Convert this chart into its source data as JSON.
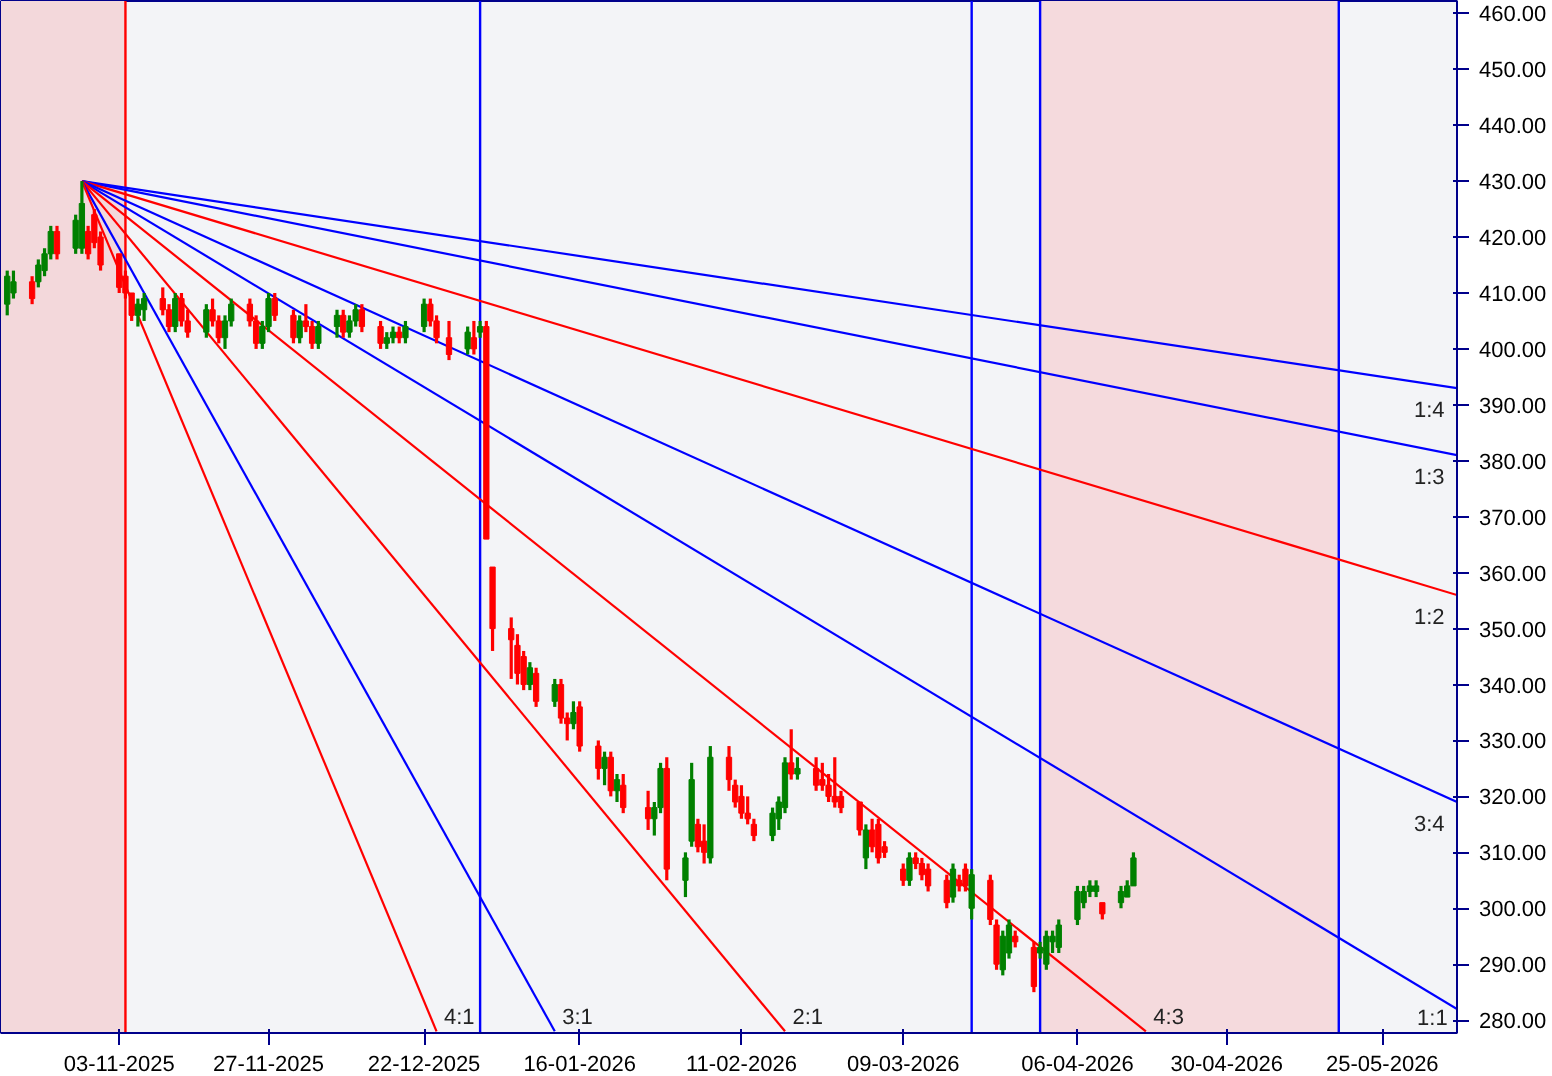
{
  "chart_data": {
    "type": "candlestick",
    "x": [
      "2025-10-16",
      "2025-10-17",
      "2025-10-20",
      "2025-10-21",
      "2025-10-22",
      "2025-10-23",
      "2025-10-24",
      "2025-10-27",
      "2025-10-28",
      "2025-10-29",
      "2025-10-30",
      "2025-10-31",
      "2025-11-03",
      "2025-11-04",
      "2025-11-05",
      "2025-11-06",
      "2025-11-07",
      "2025-11-10",
      "2025-11-11",
      "2025-11-12",
      "2025-11-13",
      "2025-11-14",
      "2025-11-17",
      "2025-11-18",
      "2025-11-19",
      "2025-11-20",
      "2025-11-21",
      "2025-11-24",
      "2025-11-25",
      "2025-11-26",
      "2025-11-27",
      "2025-11-28",
      "2025-12-01",
      "2025-12-02",
      "2025-12-03",
      "2025-12-04",
      "2025-12-05",
      "2025-12-08",
      "2025-12-09",
      "2025-12-10",
      "2025-12-11",
      "2025-12-12",
      "2025-12-15",
      "2025-12-16",
      "2025-12-17",
      "2025-12-18",
      "2025-12-19",
      "2025-12-22",
      "2025-12-23",
      "2025-12-24",
      "2025-12-26",
      "2025-12-29",
      "2025-12-30",
      "2025-12-31",
      "2026-01-01",
      "2026-01-02",
      "2026-01-05",
      "2026-01-06",
      "2026-01-07",
      "2026-01-08",
      "2026-01-09",
      "2026-01-12",
      "2026-01-13",
      "2026-01-14",
      "2026-01-15",
      "2026-01-16",
      "2026-01-19",
      "2026-01-20",
      "2026-01-21",
      "2026-01-22",
      "2026-01-23",
      "2026-01-27",
      "2026-01-28",
      "2026-01-29",
      "2026-01-30",
      "2026-02-02",
      "2026-02-03",
      "2026-02-04",
      "2026-02-05",
      "2026-02-06",
      "2026-02-09",
      "2026-02-10",
      "2026-02-11",
      "2026-02-12",
      "2026-02-13",
      "2026-02-16",
      "2026-02-17",
      "2026-02-18",
      "2026-02-19",
      "2026-02-20",
      "2026-02-23",
      "2026-02-24",
      "2026-02-25",
      "2026-02-26",
      "2026-02-27",
      "2026-03-02",
      "2026-03-03",
      "2026-03-04",
      "2026-03-05",
      "2026-03-06",
      "2026-03-09",
      "2026-03-10",
      "2026-03-11",
      "2026-03-12",
      "2026-03-13",
      "2026-03-16",
      "2026-03-17",
      "2026-03-18",
      "2026-03-19",
      "2026-03-20",
      "2026-03-23",
      "2026-03-24",
      "2026-03-25",
      "2026-03-26",
      "2026-03-27",
      "2026-03-30",
      "2026-03-31",
      "2026-04-01",
      "2026-04-02",
      "2026-04-03",
      "2026-04-06",
      "2026-04-07",
      "2026-04-08",
      "2026-04-09",
      "2026-04-10",
      "2026-04-13",
      "2026-04-14",
      "2026-04-15"
    ],
    "ohlc": [
      [
        408,
        414,
        406,
        413
      ],
      [
        410,
        414,
        409,
        412
      ],
      [
        412,
        413,
        408,
        409
      ],
      [
        412,
        416,
        411,
        415
      ],
      [
        414,
        418,
        413,
        417
      ],
      [
        417,
        422,
        416,
        421
      ],
      [
        421,
        422,
        416,
        417
      ],
      [
        418,
        424,
        417,
        423
      ],
      [
        418,
        430,
        417,
        426
      ],
      [
        421,
        422,
        416,
        417
      ],
      [
        424,
        425,
        418,
        419
      ],
      [
        420,
        421,
        414,
        415
      ],
      [
        417,
        417,
        410,
        411
      ],
      [
        413,
        414,
        409,
        410
      ],
      [
        410,
        410,
        405,
        406
      ],
      [
        406,
        409,
        404,
        408
      ],
      [
        407,
        410,
        405,
        409
      ],
      [
        409,
        411,
        406,
        407
      ],
      [
        407,
        408,
        403,
        404
      ],
      [
        404,
        410,
        403,
        409
      ],
      [
        409,
        410,
        404,
        405
      ],
      [
        405,
        407,
        402,
        403
      ],
      [
        403,
        408,
        402,
        407
      ],
      [
        407,
        409,
        404,
        405
      ],
      [
        405,
        406,
        401,
        402
      ],
      [
        402,
        406,
        400,
        405
      ],
      [
        405,
        409,
        404,
        408
      ],
      [
        408,
        409,
        404,
        405
      ],
      [
        405,
        406,
        400,
        401
      ],
      [
        401,
        405,
        400,
        404
      ],
      [
        404,
        410,
        403,
        409
      ],
      [
        409,
        410,
        405,
        406
      ],
      [
        406,
        407,
        401,
        402
      ],
      [
        402,
        406,
        401,
        405
      ],
      [
        405,
        408,
        403,
        404
      ],
      [
        404,
        405,
        400,
        401
      ],
      [
        401,
        405,
        400,
        404
      ],
      [
        404,
        407,
        402,
        406
      ],
      [
        406,
        407,
        402,
        403
      ],
      [
        403,
        406,
        402,
        405
      ],
      [
        405,
        408,
        404,
        407
      ],
      [
        407,
        408,
        403,
        404
      ],
      [
        404,
        405,
        400,
        401
      ],
      [
        401,
        403,
        400,
        402
      ],
      [
        402,
        404,
        401,
        403
      ],
      [
        403,
        404,
        401,
        402
      ],
      [
        402,
        405,
        401,
        404
      ],
      [
        404,
        409,
        403,
        408
      ],
      [
        408,
        409,
        404,
        405
      ],
      [
        405,
        406,
        401,
        402
      ],
      [
        402,
        405,
        398,
        399
      ],
      [
        400,
        404,
        399,
        403
      ],
      [
        402,
        405,
        399,
        400
      ],
      [
        403,
        405,
        402,
        404
      ],
      [
        404,
        405,
        366,
        366
      ],
      [
        361,
        361,
        346,
        350
      ],
      [
        350,
        352,
        341,
        348
      ],
      [
        347,
        349,
        340,
        342
      ],
      [
        345,
        346,
        339,
        340
      ],
      [
        340,
        344,
        339,
        343
      ],
      [
        342,
        343,
        336,
        337
      ],
      [
        337,
        341,
        336,
        340
      ],
      [
        340,
        341,
        333,
        334
      ],
      [
        334,
        335,
        330,
        333
      ],
      [
        333,
        337,
        332,
        335
      ],
      [
        336,
        337,
        328,
        329
      ],
      [
        329,
        330,
        323,
        325
      ],
      [
        325,
        328,
        322,
        327
      ],
      [
        327,
        328,
        320,
        321
      ],
      [
        321,
        324,
        319,
        323
      ],
      [
        322,
        324,
        317,
        318
      ],
      [
        318,
        321,
        314,
        316
      ],
      [
        316,
        319,
        313,
        318
      ],
      [
        318,
        326,
        317,
        325
      ],
      [
        325,
        327,
        305,
        307
      ],
      [
        305,
        310,
        302,
        309
      ],
      [
        312,
        326,
        311,
        323
      ],
      [
        315,
        316,
        310,
        311
      ],
      [
        312,
        315,
        308,
        310
      ],
      [
        309,
        329,
        308,
        327
      ],
      [
        327,
        329,
        321,
        323
      ],
      [
        322,
        323,
        318,
        319
      ],
      [
        320,
        322,
        316,
        317
      ],
      [
        317,
        320,
        315,
        316
      ],
      [
        315,
        316,
        312,
        313
      ],
      [
        313,
        318,
        312,
        317
      ],
      [
        316,
        320,
        314,
        319
      ],
      [
        318,
        327,
        317,
        326
      ],
      [
        326,
        332,
        323,
        324
      ],
      [
        324,
        327,
        323,
        325
      ],
      [
        325,
        327,
        321,
        322
      ],
      [
        323,
        326,
        321,
        322
      ],
      [
        322,
        324,
        319,
        320
      ],
      [
        320,
        327,
        318,
        319
      ],
      [
        320,
        321,
        317,
        318
      ],
      [
        319,
        319,
        313,
        314
      ],
      [
        309,
        315,
        307,
        314
      ],
      [
        314,
        316,
        310,
        311
      ],
      [
        315,
        316,
        308,
        309
      ],
      [
        311,
        312,
        309,
        310
      ],
      [
        307,
        308,
        304,
        305
      ],
      [
        305,
        310,
        304,
        309
      ],
      [
        309,
        310,
        307,
        308
      ],
      [
        308,
        309,
        305,
        306
      ],
      [
        307,
        308,
        303,
        304
      ],
      [
        305,
        306,
        300,
        301
      ],
      [
        302,
        308,
        301,
        307
      ],
      [
        305,
        306,
        303,
        304
      ],
      [
        307,
        308,
        303,
        304
      ],
      [
        300,
        307,
        298,
        306
      ],
      [
        305,
        306,
        297,
        298
      ],
      [
        297,
        298,
        289,
        290
      ],
      [
        289,
        296,
        288,
        295
      ],
      [
        292,
        298,
        291,
        297
      ],
      [
        295,
        296,
        293,
        294
      ],
      [
        293,
        294,
        285,
        286
      ],
      [
        292,
        294,
        291,
        293
      ],
      [
        290,
        296,
        289,
        295
      ],
      [
        294,
        296,
        292,
        295
      ],
      [
        293,
        298,
        292,
        297
      ],
      [
        298,
        304,
        297,
        303
      ],
      [
        301,
        304,
        300,
        303
      ],
      [
        303,
        305,
        302,
        304
      ],
      [
        303,
        305,
        302,
        304
      ],
      [
        301,
        301,
        298,
        299
      ],
      [
        301,
        304,
        300,
        303
      ],
      [
        302,
        305,
        302,
        304
      ],
      [
        304,
        310,
        304,
        309
      ]
    ],
    "colors": [
      "#008000",
      "#008000",
      "#ff0000",
      "#008000",
      "#008000",
      "#008000",
      "#ff0000",
      "#008000",
      "#008000",
      "#ff0000",
      "#ff0000",
      "#ff0000",
      "#ff0000",
      "#ff0000",
      "#ff0000",
      "#008000",
      "#008000",
      "#ff0000",
      "#ff0000",
      "#008000",
      "#ff0000",
      "#ff0000",
      "#008000",
      "#ff0000",
      "#ff0000",
      "#008000",
      "#008000",
      "#ff0000",
      "#ff0000",
      "#008000",
      "#008000",
      "#ff0000",
      "#ff0000",
      "#008000",
      "#ff0000",
      "#ff0000",
      "#008000",
      "#008000",
      "#ff0000",
      "#008000",
      "#008000",
      "#ff0000",
      "#ff0000",
      "#008000",
      "#008000",
      "#ff0000",
      "#008000",
      "#008000",
      "#ff0000",
      "#ff0000",
      "#ff0000",
      "#008000",
      "#ff0000",
      "#008000",
      "#ff0000",
      "#ff0000",
      "#ff0000",
      "#ff0000",
      "#ff0000",
      "#008000",
      "#ff0000",
      "#008000",
      "#ff0000",
      "#ff0000",
      "#008000",
      "#ff0000",
      "#ff0000",
      "#008000",
      "#ff0000",
      "#008000",
      "#ff0000",
      "#ff0000",
      "#008000",
      "#008000",
      "#ff0000",
      "#008000",
      "#008000",
      "#ff0000",
      "#ff0000",
      "#008000",
      "#ff0000",
      "#ff0000",
      "#ff0000",
      "#ff0000",
      "#ff0000",
      "#008000",
      "#008000",
      "#008000",
      "#ff0000",
      "#008000",
      "#ff0000",
      "#ff0000",
      "#ff0000",
      "#ff0000",
      "#ff0000",
      "#ff0000",
      "#008000",
      "#ff0000",
      "#ff0000",
      "#ff0000",
      "#ff0000",
      "#008000",
      "#ff0000",
      "#ff0000",
      "#ff0000",
      "#ff0000",
      "#008000",
      "#ff0000",
      "#ff0000",
      "#008000",
      "#ff0000",
      "#ff0000",
      "#008000",
      "#008000",
      "#ff0000",
      "#ff0000",
      "#008000",
      "#008000",
      "#008000",
      "#008000",
      "#008000",
      "#008000",
      "#008000",
      "#008000",
      "#ff0000",
      "#008000",
      "#008000",
      "#008000"
    ],
    "series": [
      {
        "name": "1:4",
        "type": "line",
        "color": "#0000ff",
        "x": [
          "2025-10-28",
          "2026-06-06"
        ],
        "values": [
          430,
          393
        ]
      },
      {
        "name": "1:3",
        "type": "line",
        "color": "#0000ff",
        "x": [
          "2025-10-28",
          "2026-06-06"
        ],
        "values": [
          430,
          381
        ]
      },
      {
        "name": "1:2",
        "type": "line",
        "color": "#ff0000",
        "x": [
          "2025-10-28",
          "2026-06-06"
        ],
        "values": [
          430,
          356
        ]
      },
      {
        "name": "3:4",
        "type": "line",
        "color": "#0000ff",
        "x": [
          "2025-10-28",
          "2026-06-06"
        ],
        "values": [
          430,
          319
        ]
      },
      {
        "name": "1:1",
        "type": "line",
        "color": "#0000ff",
        "x": [
          "2025-10-28",
          "2026-06-06"
        ],
        "values": [
          430,
          282
        ]
      },
      {
        "name": "4:3",
        "type": "line",
        "color": "#ff0000",
        "x": [
          "2025-10-28",
          "2026-04-17"
        ],
        "values": [
          430,
          278
        ]
      },
      {
        "name": "2:1",
        "type": "line",
        "color": "#ff0000",
        "x": [
          "2025-10-28",
          "2026-02-18"
        ],
        "values": [
          430,
          278
        ]
      },
      {
        "name": "3:1",
        "type": "line",
        "color": "#0000ff",
        "x": [
          "2025-10-28",
          "2026-01-12"
        ],
        "values": [
          430,
          278
        ]
      },
      {
        "name": "4:1",
        "type": "line",
        "color": "#ff0000",
        "x": [
          "2025-10-28",
          "2025-12-24"
        ],
        "values": [
          430,
          278
        ]
      }
    ],
    "xlim": [
      "2025-10-15",
      "2026-06-06"
    ],
    "ylim": [
      277.7,
      462.2
    ],
    "xticks": [
      {
        "value": "2025-11-03",
        "label": "03-11-2025"
      },
      {
        "value": "2025-11-27",
        "label": "27-11-2025"
      },
      {
        "value": "2025-12-22",
        "label": "22-12-2025"
      },
      {
        "value": "2026-01-16",
        "label": "16-01-2026"
      },
      {
        "value": "2026-02-11",
        "label": "11-02-2026"
      },
      {
        "value": "2026-03-09",
        "label": "09-03-2026"
      },
      {
        "value": "2026-04-06",
        "label": "06-04-2026"
      },
      {
        "value": "2026-04-30",
        "label": "30-04-2026"
      },
      {
        "value": "2026-05-25",
        "label": "25-05-2026"
      }
    ],
    "yticks": [
      {
        "value": 280,
        "label": "280.00"
      },
      {
        "value": 290,
        "label": "290.00"
      },
      {
        "value": 300,
        "label": "300.00"
      },
      {
        "value": 310,
        "label": "310.00"
      },
      {
        "value": 320,
        "label": "320.00"
      },
      {
        "value": 330,
        "label": "330.00"
      },
      {
        "value": 340,
        "label": "340.00"
      },
      {
        "value": 350,
        "label": "350.00"
      },
      {
        "value": 360,
        "label": "360.00"
      },
      {
        "value": 370,
        "label": "370.00"
      },
      {
        "value": 380,
        "label": "380.00"
      },
      {
        "value": 390,
        "label": "390.00"
      },
      {
        "value": 400,
        "label": "400.00"
      },
      {
        "value": 410,
        "label": "410.00"
      },
      {
        "value": 420,
        "label": "420.00"
      },
      {
        "value": 430,
        "label": "430.00"
      },
      {
        "value": 440,
        "label": "440.00"
      },
      {
        "value": 450,
        "label": "450.00"
      },
      {
        "value": 460,
        "label": "460.00"
      }
    ],
    "bands": [
      {
        "axis": "x",
        "from": "2025-10-15",
        "to": "2025-11-04",
        "color": "#f3d8db"
      },
      {
        "axis": "x",
        "from": "2026-03-31",
        "to": "2026-05-18",
        "color": "#f5dadd"
      }
    ],
    "ref_lines": [
      {
        "axis": "x",
        "value": "2025-11-04",
        "color": "#ff0000"
      },
      {
        "axis": "x",
        "value": "2025-12-31",
        "color": "#0000ff"
      },
      {
        "axis": "x",
        "value": "2026-03-20",
        "color": "#0000ff"
      },
      {
        "axis": "x",
        "value": "2026-03-31",
        "color": "#0000ff"
      },
      {
        "axis": "x",
        "value": "2026-05-18",
        "color": "#0000ff"
      }
    ],
    "grid": false
  }
}
